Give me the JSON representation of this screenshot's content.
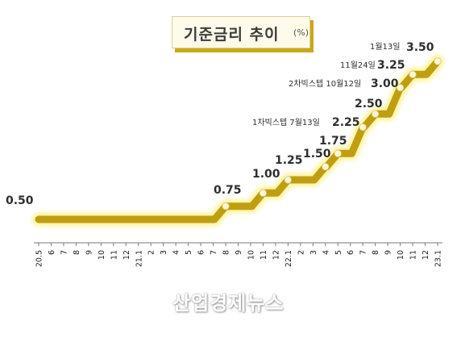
{
  "title": "기준금리 추이",
  "unit": "(%)",
  "watermark": "산업경제뉴스",
  "colors": {
    "line": "#bf9e12",
    "glow": "#fdf188",
    "marker": "#fff8d6",
    "axis": "#7a7a7a"
  },
  "chart_data": {
    "type": "line",
    "title": "기준금리 추이",
    "unit": "(%)",
    "categories": [
      "20.5",
      "6",
      "7",
      "8",
      "9",
      "10",
      "11",
      "12",
      "21.1",
      "2",
      "3",
      "4",
      "5",
      "6",
      "7",
      "8",
      "9",
      "10",
      "11",
      "12",
      "22.1",
      "2",
      "3",
      "4",
      "5",
      "6",
      "7",
      "8",
      "9",
      "10",
      "11",
      "12",
      "23.1"
    ],
    "series": [
      {
        "values": [
          0.5,
          0.5,
          0.5,
          0.5,
          0.5,
          0.5,
          0.5,
          0.5,
          0.5,
          0.5,
          0.5,
          0.5,
          0.5,
          0.5,
          0.5,
          0.75,
          0.75,
          0.75,
          1.0,
          1.0,
          1.25,
          1.25,
          1.25,
          1.5,
          1.75,
          1.75,
          2.25,
          2.5,
          2.5,
          3.0,
          3.25,
          3.25,
          3.5
        ]
      }
    ],
    "ylim": [
      0,
      3.8
    ],
    "grid": false,
    "markers": [
      {
        "x": "8",
        "y": 0.75
      },
      {
        "x": "11",
        "y": 1.0
      },
      {
        "x": "22.1",
        "y": 1.25
      },
      {
        "x": "4",
        "y": 1.5
      },
      {
        "x": "5",
        "y": 1.75
      },
      {
        "x": "7",
        "y": 2.25
      },
      {
        "x": "8",
        "y": 2.5
      },
      {
        "x": "10",
        "y": 3.0
      },
      {
        "x": "11",
        "y": 3.25
      },
      {
        "x": "23.1",
        "y": 3.5
      }
    ],
    "data_labels": [
      "0.50",
      "0.75",
      "1.00",
      "1.25",
      "1.50",
      "1.75",
      "2.25",
      "2.50",
      "3.00",
      "3.25",
      "3.50"
    ],
    "annotations": [
      "1차빅스텝 7월13일",
      "2차빅스텝 10월12일",
      "11월24일",
      "1월13일"
    ]
  }
}
